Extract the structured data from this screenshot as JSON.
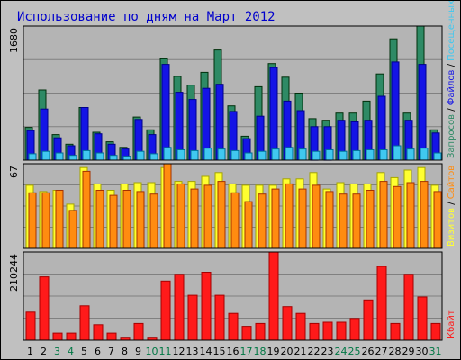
{
  "colors": {
    "background": "#c0c0c0",
    "plot_bg": "#b4b4b4",
    "title": "#0000cc",
    "requests": "#2e8a65",
    "files": "#1414e6",
    "pages": "#40c8f0",
    "visits": "#ffff30",
    "sites": "#ff8c10",
    "kbytes": "#ff1a1a",
    "weekend_label": "#007744",
    "weekday_label": "#000000"
  },
  "chart_data": {
    "type": "bar",
    "title": "Использование по дням на Март 2012",
    "categories": [
      "1",
      "2",
      "3",
      "4",
      "5",
      "6",
      "7",
      "8",
      "9",
      "10",
      "11",
      "12",
      "13",
      "14",
      "15",
      "16",
      "17",
      "18",
      "19",
      "20",
      "21",
      "22",
      "23",
      "24",
      "25",
      "26",
      "27",
      "28",
      "29",
      "30",
      "31"
    ],
    "weekend": [
      false,
      false,
      true,
      true,
      false,
      false,
      false,
      false,
      false,
      true,
      true,
      false,
      false,
      false,
      false,
      false,
      true,
      true,
      false,
      false,
      false,
      false,
      false,
      true,
      true,
      false,
      false,
      false,
      false,
      false,
      true
    ],
    "panels": [
      {
        "id": "hits",
        "ymax_label": "1680",
        "ymax": 1680,
        "legend": [
          "Запросов",
          "Файлов",
          "Посещенных страниц"
        ],
        "legend_separator": " / ",
        "series": [
          {
            "name": "Запросов",
            "color": "#2e8a65",
            "values": [
              410,
              880,
              320,
              200,
              660,
              350,
              230,
              160,
              540,
              380,
              1270,
              1050,
              940,
              1100,
              1380,
              680,
              300,
              920,
              1210,
              1040,
              840,
              520,
              500,
              590,
              590,
              740,
              1080,
              1520,
              590,
              1680,
              380
            ]
          },
          {
            "name": "Файлов",
            "color": "#1414e6",
            "values": [
              370,
              640,
              280,
              180,
              660,
              330,
              200,
              140,
              510,
              320,
              1200,
              850,
              760,
              900,
              950,
              610,
              270,
              550,
              1160,
              740,
              620,
              420,
              420,
              500,
              480,
              500,
              800,
              1230,
              500,
              1200,
              340
            ]
          },
          {
            "name": "Посещенных страниц",
            "color": "#40c8f0",
            "values": [
              80,
              110,
              90,
              60,
              120,
              90,
              60,
              50,
              110,
              80,
              160,
              130,
              120,
              150,
              140,
              120,
              90,
              110,
              140,
              160,
              140,
              110,
              130,
              110,
              120,
              130,
              130,
              180,
              140,
              150,
              90
            ]
          }
        ]
      },
      {
        "id": "visits",
        "ymax_label": "67",
        "ymax": 67,
        "legend": [
          "Визитов",
          "Сайтов"
        ],
        "legend_separator": " / ",
        "series": [
          {
            "name": "Визитов",
            "color": "#ffff30",
            "values": [
              50,
              45,
              46,
              35,
              64,
              51,
              46,
              51,
              52,
              52,
              64,
              53,
              53,
              57,
              60,
              51,
              50,
              50,
              50,
              55,
              55,
              60,
              47,
              52,
              51,
              51,
              60,
              56,
              62,
              64,
              50
            ]
          },
          {
            "name": "Сайтов",
            "color": "#ff8c10",
            "values": [
              44,
              44,
              46,
              30,
              61,
              46,
              42,
              46,
              45,
              43,
              67,
              51,
              47,
              50,
              53,
              44,
              37,
              43,
              47,
              51,
              47,
              50,
              45,
              43,
              43,
              46,
              53,
              49,
              52,
              53,
              45
            ]
          }
        ]
      },
      {
        "id": "kbytes",
        "ymax_label": "210244",
        "ymax": 210244,
        "legend": [
          "Кбайт"
        ],
        "legend_separator": "",
        "series": [
          {
            "name": "Кбайт",
            "color": "#ff1a1a",
            "values": [
              67000,
              151000,
              17000,
              17000,
              82000,
              37000,
              17000,
              7000,
              40000,
              7000,
              141000,
              157000,
              107000,
              162000,
              107000,
              64000,
              33000,
              40000,
              210244,
              80000,
              64000,
              40000,
              43000,
              43000,
              52000,
              96000,
              176000,
              40000,
              157000,
              103000,
              40000
            ]
          }
        ]
      }
    ],
    "xlabel": "",
    "ylabel": "",
    "grid": true
  }
}
